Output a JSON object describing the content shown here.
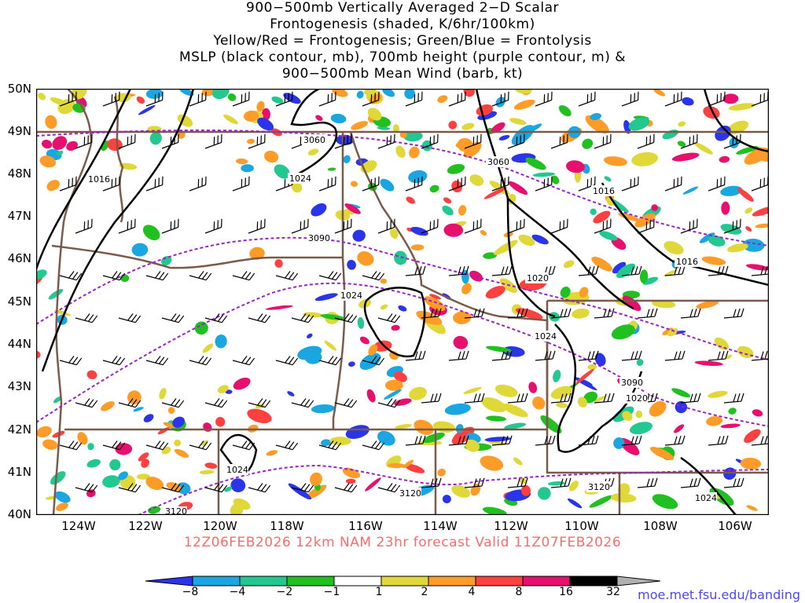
{
  "title": {
    "line1": "900−500mb Vertically Averaged 2−D Scalar",
    "line2": "Frontogenesis (shaded, K/6hr/100km)",
    "line3": "Yellow/Red = Frontogenesis;  Green/Blue = Frontolysis",
    "line4": "MSLP (black contour, mb), 700mb height (purple contour, m) &",
    "line5": "900−500mb Mean Wind (barb, kt)"
  },
  "latitudes": [
    "50N",
    "49N",
    "48N",
    "47N",
    "46N",
    "45N",
    "44N",
    "43N",
    "42N",
    "41N",
    "40N"
  ],
  "longitudes": [
    "124W",
    "122W",
    "120W",
    "118W",
    "116W",
    "114W",
    "112W",
    "110W",
    "108W",
    "106W"
  ],
  "valid_text": "12Z06FEB2026 12km NAM 23hr forecast Valid 11Z07FEB2026",
  "colorbar": {
    "ticks": [
      "−8",
      "−4",
      "−2",
      "−1",
      "1",
      "2",
      "4",
      "8",
      "16",
      "32"
    ],
    "colors": [
      "#2a34e8",
      "#1aa6e0",
      "#22c890",
      "#20c020",
      "#ffffff",
      "#e0d838",
      "#ff9c28",
      "#ff4040",
      "#e8106e",
      "#000000",
      "#b0b0b0"
    ]
  },
  "contour_labels": {
    "mslp": [
      "1016",
      "1024",
      "1016",
      "1016",
      "1020",
      "1024",
      "1024",
      "1020",
      "1024",
      "1024"
    ],
    "height": [
      "3060",
      "3060",
      "3090",
      "3090",
      "3120",
      "3120",
      "3120"
    ]
  },
  "credit": "moe.met.fsu.edu/banding"
}
